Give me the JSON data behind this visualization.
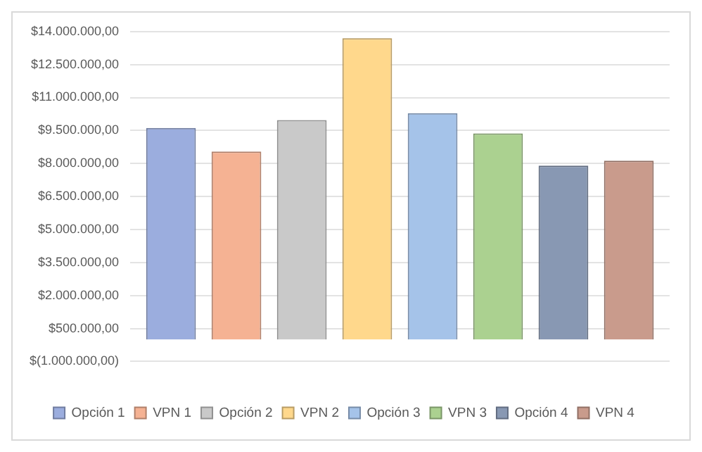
{
  "chart_data": {
    "type": "bar",
    "categories": [
      null
    ],
    "series": [
      {
        "name": "Opción 1",
        "color": "#9badde",
        "values": [
          9620000
        ]
      },
      {
        "name": "VPN 1",
        "color": "#f5b293",
        "values": [
          8540000
        ]
      },
      {
        "name": "Opción 2",
        "color": "#c9c9c9",
        "values": [
          9980000
        ]
      },
      {
        "name": "VPN 2",
        "color": "#ffd88c",
        "values": [
          13700000
        ]
      },
      {
        "name": "Opción 3",
        "color": "#a5c3e9",
        "values": [
          10290000
        ]
      },
      {
        "name": "VPN 3",
        "color": "#abd190",
        "values": [
          9370000
        ]
      },
      {
        "name": "Opción 4",
        "color": "#8898b3",
        "values": [
          7900000
        ]
      },
      {
        "name": "VPN 4",
        "color": "#c99b8c",
        "values": [
          8130000
        ]
      }
    ],
    "ylim": [
      -1000000,
      14000000
    ],
    "yticks": [
      {
        "value": -1000000,
        "label": "$(1.000.000,00)"
      },
      {
        "value": 500000,
        "label": "$500.000,00"
      },
      {
        "value": 2000000,
        "label": "$2.000.000,00"
      },
      {
        "value": 3500000,
        "label": "$3.500.000,00"
      },
      {
        "value": 5000000,
        "label": "$5.000.000,00"
      },
      {
        "value": 6500000,
        "label": "$6.500.000,00"
      },
      {
        "value": 8000000,
        "label": "$8.000.000,00"
      },
      {
        "value": 9500000,
        "label": "$9.500.000,00"
      },
      {
        "value": 11000000,
        "label": "$11.000.000,00"
      },
      {
        "value": 12500000,
        "label": "$12.500.000,00"
      },
      {
        "value": 14000000,
        "label": "$14.000.000,00"
      }
    ],
    "grid": "y",
    "legend": "bottom"
  }
}
